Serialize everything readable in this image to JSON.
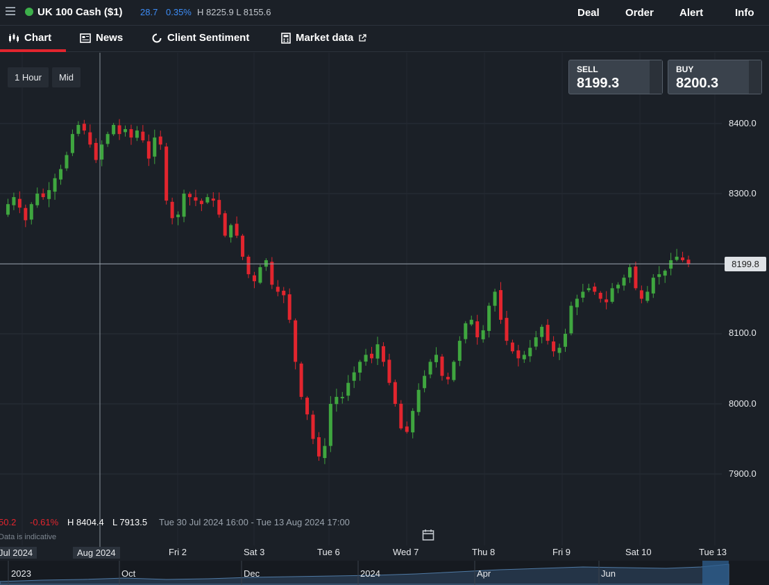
{
  "topbar": {
    "instrument": "UK 100 Cash ($1)",
    "change": "28.7",
    "change_pct": "0.35%",
    "high_low": "H 8225.9  L 8155.6",
    "nav": [
      "Deal",
      "Order",
      "Alert",
      "Info"
    ]
  },
  "tabs": [
    "Chart",
    "News",
    "Client Sentiment",
    "Market data"
  ],
  "controls": {
    "timeframe": "1 Hour",
    "price_type": "Mid"
  },
  "ticket": {
    "sell_label": "SELL",
    "sell_price": "8199.3",
    "buy_label": "BUY",
    "buy_price": "8200.3"
  },
  "current_price_tag": "8199.8",
  "info_bar": {
    "change": "50.2",
    "change_pct": "-0.61%",
    "high": "H 8404.4",
    "low": "L 7913.5",
    "range": "Tue 30 Jul 2024 16:00 - Tue 13 Aug 2024 17:00",
    "disclaimer": "Data is indicative"
  },
  "x_axis_labels": [
    "Jul 2024",
    "Aug 2024",
    "Fri 2",
    "Sat 3",
    "Tue 6",
    "Wed 7",
    "Thu 8",
    "Fri 9",
    "Sat 10",
    "Tue 13"
  ],
  "navigator_labels": [
    "2023",
    "Oct",
    "Dec",
    "2024",
    "Apr",
    "Jun"
  ],
  "colors": {
    "up": "#3fa63f",
    "down": "#e2252e",
    "accent": "#e2252e",
    "link": "#3d8cf5"
  },
  "chart_data": {
    "type": "candlestick",
    "y_ticks": [
      "8400.0",
      "8300.0",
      "8200.0",
      "8100.0",
      "8000.0",
      "7900.0"
    ],
    "ylim": [
      7870,
      8475
    ],
    "grid": true,
    "close_path": [
      8270,
      8285,
      8295,
      8280,
      8262,
      8285,
      8300,
      8295,
      8305,
      8322,
      8335,
      8355,
      8385,
      8398,
      8390,
      8370,
      8348,
      8370,
      8385,
      8398,
      8385,
      8392,
      8380,
      8390,
      8376,
      8350,
      8380,
      8370,
      8290,
      8265,
      8270,
      8300,
      8295,
      8290,
      8285,
      8295,
      8290,
      8270,
      8240,
      8255,
      8240,
      8210,
      8185,
      8175,
      8195,
      8205,
      8170,
      8160,
      8155,
      8120,
      8060,
      8010,
      7985,
      7950,
      7925,
      7940,
      8000,
      8010,
      8010,
      8030,
      8045,
      8060,
      8070,
      8065,
      8085,
      8060,
      8030,
      8000,
      7965,
      7960,
      7990,
      8020,
      8040,
      8060,
      8070,
      8040,
      8035,
      8060,
      8090,
      8115,
      8120,
      8095,
      8105,
      8140,
      8160,
      8120,
      8090,
      8075,
      8065,
      8070,
      8080,
      8095,
      8110,
      8090,
      8075,
      8080,
      8100,
      8140,
      8150,
      8160,
      8165,
      8160,
      8150,
      8145,
      8165,
      8170,
      8180,
      8195,
      8165,
      8150,
      8160,
      8180,
      8185,
      8190,
      8205,
      8210,
      8205,
      8200
    ]
  }
}
